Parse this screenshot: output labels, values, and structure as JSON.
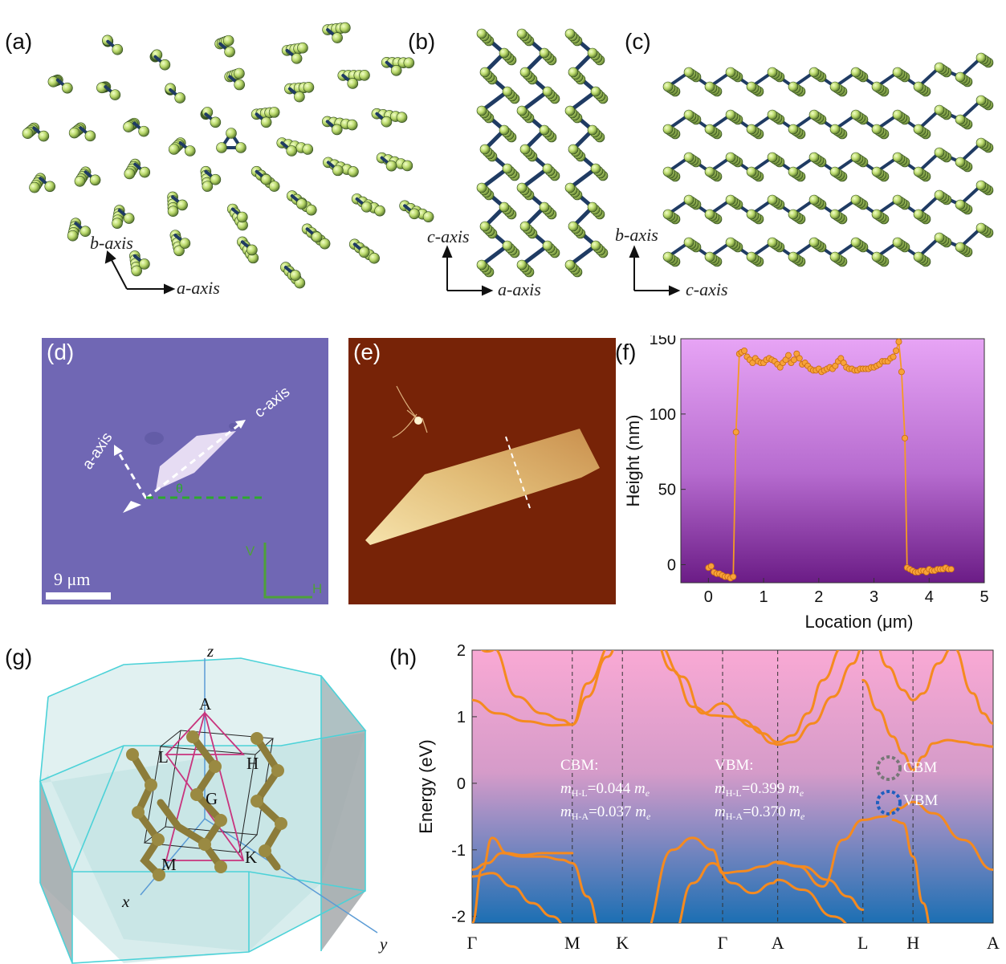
{
  "panels": {
    "a": {
      "label": "(a)",
      "axes": [
        "b-axis",
        "a-axis"
      ]
    },
    "b": {
      "label": "(b)",
      "axes": [
        "c-axis",
        "a-axis"
      ]
    },
    "c": {
      "label": "(c)",
      "axes": [
        "b-axis",
        "c-axis"
      ]
    },
    "d": {
      "label": "(d)",
      "arrows": [
        "a-axis",
        "c-axis"
      ],
      "angle": "θ",
      "scalebar": "9 μm",
      "pol": [
        "V",
        "H"
      ]
    },
    "e": {
      "label": "(e)"
    },
    "f": {
      "label": "(f)"
    },
    "g": {
      "label": "(g)",
      "axes": [
        "z",
        "x",
        "y"
      ],
      "points": [
        "A",
        "L",
        "H",
        "G",
        "M",
        "K"
      ]
    },
    "h": {
      "label": "(h)",
      "cbm_title": "CBM:",
      "cbm_hl": "0.044",
      "cbm_ha": "0.037",
      "vbm_title": "VBM:",
      "vbm_hl": "0.399",
      "vbm_ha": "0.370",
      "m_label": "m",
      "sub_hl": "H-L",
      "sub_ha": "H-A",
      "me": "m",
      "me_sub": "e",
      "mark_cbm": "CBM",
      "mark_vbm": "VBM"
    }
  },
  "colors": {
    "accent_orange": "#f59a23",
    "atom_green": "#b9d86a",
    "bond_navy": "#1f3b63"
  },
  "chart_data": [
    {
      "type": "line",
      "panel": "f",
      "xlabel": "Location (μm)",
      "ylabel": "Height (nm)",
      "xlim": [
        -0.5,
        5
      ],
      "ylim": [
        -12,
        150
      ],
      "xticks": [
        0,
        1,
        2,
        3,
        4,
        5
      ],
      "yticks": [
        0,
        50,
        100,
        150
      ],
      "x": [
        0.0,
        0.05,
        0.1,
        0.15,
        0.2,
        0.25,
        0.3,
        0.35,
        0.4,
        0.45,
        0.5,
        0.56,
        0.6,
        0.65,
        0.7,
        0.75,
        0.8,
        0.85,
        0.9,
        0.95,
        1.0,
        1.05,
        1.1,
        1.15,
        1.2,
        1.25,
        1.3,
        1.35,
        1.4,
        1.45,
        1.5,
        1.55,
        1.6,
        1.65,
        1.7,
        1.75,
        1.8,
        1.85,
        1.9,
        1.95,
        2.0,
        2.05,
        2.1,
        2.15,
        2.2,
        2.25,
        2.3,
        2.35,
        2.4,
        2.45,
        2.5,
        2.55,
        2.6,
        2.65,
        2.7,
        2.75,
        2.8,
        2.85,
        2.9,
        2.95,
        3.0,
        3.05,
        3.1,
        3.15,
        3.2,
        3.25,
        3.3,
        3.35,
        3.4,
        3.45,
        3.5,
        3.56,
        3.6,
        3.65,
        3.7,
        3.75,
        3.8,
        3.85,
        3.9,
        3.95,
        4.0,
        4.05,
        4.1,
        4.15,
        4.2,
        4.25,
        4.3,
        4.35,
        4.4
      ],
      "y": [
        -2,
        -1,
        -5,
        -6,
        -6,
        -7,
        -8,
        -8,
        -9,
        -8,
        88,
        140,
        141,
        142,
        138,
        136,
        134,
        137,
        135,
        134,
        134,
        136,
        137,
        136,
        135,
        133,
        131,
        134,
        136,
        139,
        134,
        136,
        140,
        137,
        133,
        134,
        132,
        130,
        129,
        129,
        130,
        128,
        129,
        130,
        131,
        130,
        132,
        135,
        137,
        134,
        131,
        130,
        130,
        129,
        129,
        130,
        130,
        130,
        130,
        131,
        131,
        132,
        133,
        135,
        135,
        135,
        137,
        138,
        142,
        148,
        128,
        84,
        -2,
        -3,
        -4,
        -5,
        -5,
        -4,
        -4,
        -5,
        -3,
        -4,
        -4,
        -3,
        -3,
        -3,
        -2,
        -3,
        -3
      ]
    },
    {
      "type": "line",
      "panel": "h",
      "ylabel": "Energy (eV)",
      "ylim": [
        -2.1,
        2
      ],
      "yticks": [
        -2,
        -1,
        0,
        1,
        2
      ],
      "kpath": [
        "Γ",
        "M",
        "K",
        "Γ",
        "A",
        "L",
        "H",
        "A"
      ],
      "kpos": [
        0,
        1.0,
        1.5,
        2.5,
        3.05,
        3.9,
        4.4,
        5.2
      ],
      "series": [
        {
          "x": [
            0,
            0.25,
            0.55,
            0.8,
            1.0,
            1.15,
            1.35,
            1.5,
            1.7,
            2.0,
            2.25,
            2.5,
            2.7,
            2.9,
            3.05,
            3.25,
            3.5,
            3.7,
            3.9,
            4.05,
            4.2,
            4.3,
            4.4,
            4.5,
            4.6,
            4.8,
            5.0,
            5.2
          ],
          "y": [
            1.25,
            1.05,
            0.93,
            0.87,
            0.88,
            1.3,
            1.9,
            2.3,
            2.3,
            2.3,
            2.3,
            2.3,
            2.3,
            2.3,
            2.3,
            2.3,
            2.3,
            2.3,
            2.3,
            2.3,
            2.3,
            2.3,
            2.3,
            2.3,
            2.3,
            2.3,
            2.3,
            2.3
          ]
        },
        {
          "x": [
            0,
            0.2,
            0.45,
            0.7,
            0.9,
            1.0
          ],
          "y": [
            2.25,
            2.05,
            1.3,
            1.05,
            0.95,
            0.88
          ]
        },
        {
          "x": [
            0,
            0.15,
            0.3,
            0.5,
            0.7,
            0.9,
            1.0
          ],
          "y": [
            2.1,
            1.98,
            2.05,
            2.3,
            2.3,
            2.3,
            2.3
          ]
        },
        {
          "x": [
            1.0,
            1.15,
            1.4,
            1.6,
            1.85,
            2.1,
            2.3,
            2.5,
            2.7,
            2.9,
            3.05,
            3.2,
            3.35,
            3.5,
            3.7,
            3.9
          ],
          "y": [
            0.88,
            1.5,
            2.1,
            2.3,
            2.1,
            1.6,
            1.05,
            1.2,
            0.95,
            0.75,
            0.62,
            0.72,
            1.05,
            1.55,
            2.05,
            2.4
          ]
        },
        {
          "x": [
            1.6,
            1.8,
            2.0,
            2.2,
            2.4,
            2.6,
            2.8,
            3.0,
            3.05,
            3.2,
            3.4,
            3.6,
            3.8,
            3.9
          ],
          "y": [
            2.3,
            2.2,
            1.7,
            1.15,
            1.02,
            1.0,
            0.85,
            0.6,
            0.58,
            0.62,
            0.9,
            1.3,
            1.8,
            2.05
          ]
        },
        {
          "x": [
            3.9,
            4.05,
            4.2,
            4.3,
            4.4,
            4.5,
            4.6,
            4.75,
            4.9,
            5.05,
            5.2
          ],
          "y": [
            1.55,
            1.1,
            0.7,
            0.45,
            0.2,
            0.4,
            0.6,
            0.65,
            0.62,
            0.58,
            0.55
          ]
        },
        {
          "x": [
            3.9,
            4.0,
            4.15,
            4.3,
            4.4,
            4.5,
            4.65,
            4.8,
            5.0,
            5.1,
            5.2
          ],
          "y": [
            2.4,
            2.2,
            1.75,
            1.4,
            1.25,
            1.35,
            1.8,
            2.05,
            1.35,
            1.05,
            0.9
          ]
        },
        {
          "x": [
            3.9,
            4.1,
            4.25,
            4.4,
            4.6,
            4.9,
            5.2
          ],
          "y": [
            -0.55,
            -0.5,
            -0.38,
            -0.28,
            -0.45,
            -0.85,
            -1.3
          ]
        },
        {
          "x": [
            4.2,
            4.3,
            4.4,
            4.5,
            4.6,
            4.8,
            5.0,
            5.2
          ],
          "y": [
            -0.55,
            -0.6,
            -1.1,
            -1.8,
            -2.3,
            -2.3,
            -2.3,
            -2.3
          ]
        },
        {
          "x": [
            0,
            0.15,
            0.3,
            0.5,
            0.7,
            0.9,
            1.0,
            1.15,
            1.3,
            1.5,
            1.7,
            2.0,
            2.2,
            2.4,
            2.5,
            2.7,
            2.9,
            3.05,
            3.25,
            3.5,
            3.7,
            3.9
          ],
          "y": [
            -1.3,
            -1.2,
            -1.05,
            -1.1,
            -1.1,
            -1.15,
            -1.2,
            -1.7,
            -2.3,
            -2.3,
            -2.3,
            -1.0,
            -0.82,
            -1.0,
            -1.35,
            -1.32,
            -1.25,
            -1.18,
            -1.25,
            -1.55,
            -0.85,
            -0.55
          ]
        },
        {
          "x": [
            0,
            0.1,
            0.2,
            0.35,
            0.5,
            0.7,
            0.9,
            1.0
          ],
          "y": [
            -2.1,
            -1.3,
            -0.82,
            -1.05,
            -1.08,
            -1.05,
            -1.05,
            -1.05
          ]
        },
        {
          "x": [
            0,
            0.2,
            0.4,
            0.6,
            0.8,
            1.0,
            1.2,
            1.4
          ],
          "y": [
            -1.4,
            -1.35,
            -1.55,
            -1.8,
            -2.0,
            -2.3,
            -2.3,
            -2.3
          ]
        },
        {
          "x": [
            2.0,
            2.2,
            2.4,
            2.6,
            2.8,
            3.0,
            3.05,
            3.3,
            3.6,
            3.9
          ],
          "y": [
            -2.3,
            -1.5,
            -1.2,
            -1.5,
            -1.65,
            -1.5,
            -1.45,
            -1.6,
            -2.0,
            -2.3
          ]
        },
        {
          "x": [
            3.05,
            3.3,
            3.55,
            3.75,
            3.9
          ],
          "y": [
            -1.2,
            -1.25,
            -1.45,
            -1.7,
            -1.9
          ]
        }
      ]
    }
  ]
}
